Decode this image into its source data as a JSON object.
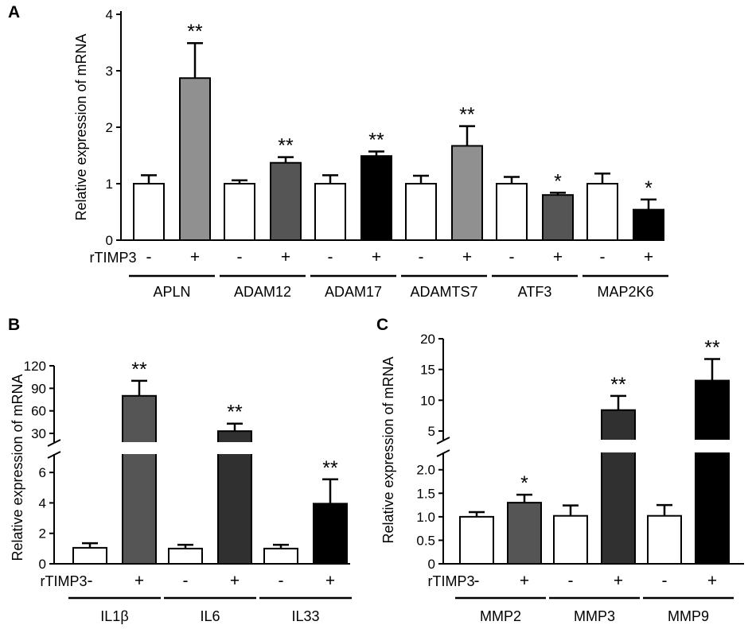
{
  "colors": {
    "white": "#ffffff",
    "light_gray": "#909090",
    "dark_gray": "#555555",
    "charcoal": "#303030",
    "black": "#000000"
  },
  "treatment_label": "rTIMP3",
  "treatment_levels": [
    "-",
    "+"
  ],
  "chart_data": [
    {
      "panel": "A",
      "type": "bar",
      "ylabel": "Relative expression of mRNA",
      "ylim": [
        0,
        4
      ],
      "yticks": [
        "0",
        "1",
        "2",
        "3",
        "4"
      ],
      "groups": [
        "APLN",
        "ADAM12",
        "ADAM17",
        "ADAMTS7",
        "ATF3",
        "MAP2K6"
      ],
      "series": [
        {
          "name": "rTIMP3 -",
          "values": [
            1.0,
            1.0,
            1.0,
            1.0,
            1.0,
            1.0
          ],
          "errors": [
            0.15,
            0.06,
            0.15,
            0.14,
            0.12,
            0.18
          ],
          "colors": [
            "#ffffff",
            "#ffffff",
            "#ffffff",
            "#ffffff",
            "#ffffff",
            "#ffffff"
          ],
          "significance": [
            "",
            "",
            "",
            "",
            "",
            ""
          ]
        },
        {
          "name": "rTIMP3 +",
          "values": [
            2.87,
            1.37,
            1.49,
            1.67,
            0.8,
            0.54
          ],
          "errors": [
            0.62,
            0.1,
            0.08,
            0.35,
            0.04,
            0.18
          ],
          "colors": [
            "#909090",
            "#555555",
            "#000000",
            "#909090",
            "#555555",
            "#000000"
          ],
          "significance": [
            "**",
            "**",
            "**",
            "**",
            "*",
            "*"
          ]
        }
      ]
    },
    {
      "panel": "B",
      "type": "bar",
      "ylabel": "Relative expression of mRNA",
      "axis_break": true,
      "ylim_lower": [
        0,
        7
      ],
      "ylim_upper": [
        20,
        125
      ],
      "yticks_lower": [
        "0",
        "2",
        "4",
        "6"
      ],
      "yticks_upper": [
        "30",
        "60",
        "90",
        "120"
      ],
      "groups": [
        "IL1β",
        "IL6",
        "IL33"
      ],
      "series": [
        {
          "name": "rTIMP3 -",
          "values": [
            1.05,
            1.0,
            1.0
          ],
          "errors": [
            0.3,
            0.25,
            0.25
          ],
          "colors": [
            "#ffffff",
            "#ffffff",
            "#ffffff"
          ],
          "significance": [
            "",
            "",
            ""
          ]
        },
        {
          "name": "rTIMP3 +",
          "values": [
            80,
            33,
            3.95
          ],
          "errors": [
            20,
            10,
            1.6
          ],
          "colors": [
            "#555555",
            "#303030",
            "#000000"
          ],
          "significance": [
            "**",
            "**",
            "**"
          ]
        }
      ]
    },
    {
      "panel": "C",
      "type": "bar",
      "ylabel": "Relative expression of  mRNA",
      "axis_break": true,
      "ylim_lower": [
        0,
        2.3
      ],
      "ylim_upper": [
        3.5,
        20
      ],
      "yticks_lower": [
        "0",
        "0.5",
        "1.0",
        "1.5",
        "2.0"
      ],
      "yticks_upper": [
        "5",
        "10",
        "15",
        "20"
      ],
      "groups": [
        "MMP2",
        "MMP3",
        "MMP9"
      ],
      "series": [
        {
          "name": "rTIMP3 -",
          "values": [
            1.0,
            1.02,
            1.02
          ],
          "errors": [
            0.1,
            0.22,
            0.23
          ],
          "colors": [
            "#ffffff",
            "#ffffff",
            "#ffffff"
          ],
          "significance": [
            "",
            "",
            ""
          ]
        },
        {
          "name": "rTIMP3 +",
          "values": [
            1.3,
            8.4,
            13.2
          ],
          "errors": [
            0.17,
            2.3,
            3.5
          ],
          "colors": [
            "#555555",
            "#303030",
            "#000000"
          ],
          "significance": [
            "*",
            "**",
            "**"
          ]
        }
      ]
    }
  ]
}
